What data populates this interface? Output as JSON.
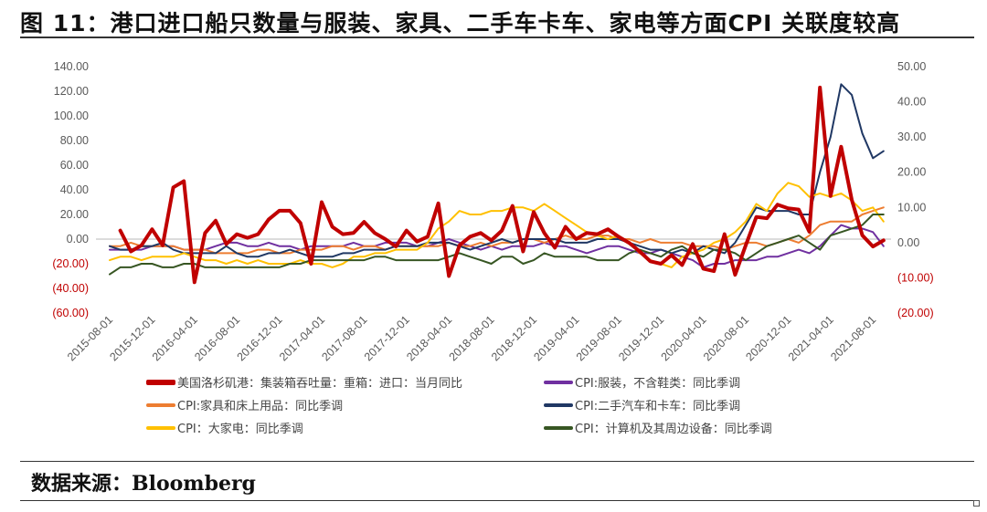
{
  "title": "图 11：港口进口船只数量与服装、家具、二手车卡车、家电等方面CPI 关联度较高",
  "source": "数据来源：Bloomberg",
  "chart_data": {
    "type": "line",
    "title": "图 11：港口进口船只数量与服装、家具、二手车卡车、家电等方面CPI 关联度较高",
    "x_start": "2015-08",
    "x_tick_labels": [
      "2015-08-01",
      "2015-12-01",
      "2016-04-01",
      "2016-08-01",
      "2016-12-01",
      "2017-04-01",
      "2017-08-01",
      "2017-12-01",
      "2018-04-01",
      "2018-08-01",
      "2018-12-01",
      "2019-04-01",
      "2019-08-01",
      "2019-12-01",
      "2020-04-01",
      "2020-08-01",
      "2020-12-01",
      "2021-04-01",
      "2021-08-01"
    ],
    "left_axis": {
      "ylim": [
        -60,
        140
      ],
      "tick_labels": [
        "140.00",
        "120.00",
        "100.00",
        "80.00",
        "60.00",
        "40.00",
        "20.00",
        "0.00",
        "(20.00)",
        "(40.00)",
        "(60.00)"
      ]
    },
    "right_axis": {
      "ylim": [
        -20,
        50
      ],
      "tick_labels": [
        "50.00",
        "40.00",
        "30.00",
        "20.00",
        "10.00",
        "0.00",
        "(10.00)",
        "(20.00)"
      ]
    },
    "negative_label_color": "#c00000",
    "legend_placement": "bottom",
    "grid": false,
    "series": [
      {
        "name": "美国洛杉矶港：集装箱吞吐量：重箱：进口：当月同比",
        "axis": "left",
        "color": "#c00000",
        "width": 4,
        "values": [
          null,
          7,
          -10,
          -5,
          8,
          -5,
          42,
          47,
          -35,
          5,
          15,
          -4,
          4,
          1,
          4,
          16,
          23,
          23,
          13,
          -20,
          30,
          10,
          4,
          5,
          14,
          5,
          0,
          -6,
          7,
          -2,
          2,
          29,
          -30,
          -5,
          2,
          5,
          -1,
          7,
          27,
          -10,
          22,
          5,
          -7,
          10,
          0,
          5,
          4,
          8,
          2,
          -3,
          -10,
          -18,
          -20,
          -13,
          -21,
          -4,
          -24,
          -26,
          4,
          -29,
          -5,
          18,
          17,
          28,
          25,
          24,
          6,
          123,
          35,
          75,
          32,
          3,
          -6,
          -1
        ]
      },
      {
        "name": "CPI:服装，不含鞋类：同比季调",
        "axis": "right",
        "color": "#7030a0",
        "width": 2,
        "values": [
          -2,
          -2,
          -2,
          -2,
          -1,
          -1,
          -1,
          -2,
          -2,
          -2,
          -1,
          0,
          0,
          -1,
          -1,
          0,
          -1,
          -1,
          -2,
          -1,
          -1,
          -1,
          -1,
          0,
          -1,
          -1,
          0,
          0,
          0,
          -1,
          -1,
          0,
          1,
          0,
          -1,
          -2,
          -1,
          -2,
          -1,
          -1,
          -1,
          0,
          -1,
          -1,
          -2,
          -3,
          -2,
          -1,
          -1,
          -2,
          -3,
          -3,
          -2,
          -3,
          -4,
          -5,
          -7,
          -6,
          -6,
          -5,
          -5,
          -5,
          -4,
          -4,
          -3,
          -2,
          -3,
          -1,
          2,
          5,
          4,
          4,
          3,
          -1
        ]
      },
      {
        "name": "CPI:家具和床上用品：同比季调",
        "axis": "right",
        "color": "#ed7d31",
        "width": 2,
        "values": [
          -1,
          -1,
          0,
          -1,
          -1,
          -1,
          -1,
          -2,
          -2,
          -2,
          -3,
          -3,
          -3,
          -3,
          -2,
          -2,
          -3,
          -3,
          -2,
          -2,
          -2,
          -1,
          -1,
          -2,
          -1,
          -1,
          -2,
          -1,
          -1,
          -1,
          -1,
          -1,
          0,
          -1,
          -1,
          0,
          -1,
          0,
          0,
          1,
          1,
          0,
          1,
          2,
          1,
          1,
          2,
          2,
          1,
          1,
          0,
          1,
          0,
          0,
          0,
          -1,
          -1,
          -1,
          -2,
          -1,
          0,
          0,
          -1,
          0,
          1,
          0,
          2,
          5,
          6,
          6,
          6,
          8,
          9,
          10
        ]
      },
      {
        "name": "CPI:二手汽车和卡车：同比季调",
        "axis": "right",
        "color": "#203864",
        "width": 2,
        "values": [
          -1,
          -2,
          -2,
          -1,
          -1,
          0,
          -2,
          -3,
          -3,
          -3,
          -3,
          -1,
          -3,
          -4,
          -4,
          -3,
          -3,
          -2,
          -3,
          -4,
          -4,
          -4,
          -3,
          -3,
          -2,
          -2,
          -2,
          -1,
          -1,
          -1,
          0,
          0,
          0,
          -1,
          -2,
          -1,
          0,
          1,
          0,
          1,
          1,
          1,
          1,
          0,
          0,
          0,
          1,
          1,
          1,
          0,
          -1,
          -2,
          -2,
          -3,
          -2,
          -3,
          -1,
          -2,
          -3,
          0,
          5,
          10,
          9,
          9,
          9,
          8,
          8,
          20,
          30,
          45,
          42,
          31,
          24,
          26
        ]
      },
      {
        "name": "CPI：大家电：同比季调",
        "axis": "right",
        "color": "#ffc000",
        "width": 2,
        "values": [
          -5,
          -4,
          -4,
          -5,
          -4,
          -4,
          -4,
          -3,
          -4,
          -5,
          -5,
          -6,
          -5,
          -6,
          -5,
          -6,
          -6,
          -6,
          -5,
          -6,
          -6,
          -7,
          -6,
          -4,
          -4,
          -3,
          -3,
          -2,
          -2,
          -2,
          0,
          4,
          6,
          9,
          8,
          8,
          9,
          9,
          10,
          10,
          9,
          11,
          9,
          7,
          5,
          3,
          2,
          1,
          2,
          0,
          -3,
          -5,
          -6,
          -7,
          -4,
          -3,
          -2,
          0,
          1,
          3,
          6,
          11,
          9,
          14,
          17,
          16,
          13,
          14,
          13,
          14,
          12,
          9,
          10,
          6
        ]
      },
      {
        "name": "CPI：计算机及其周边设备：同比季调",
        "axis": "right",
        "color": "#375623",
        "width": 2,
        "values": [
          -9,
          -7,
          -7,
          -6,
          -6,
          -7,
          -7,
          -6,
          -6,
          -7,
          -7,
          -7,
          -7,
          -7,
          -7,
          -7,
          -7,
          -6,
          -6,
          -5,
          -5,
          -5,
          -5,
          -5,
          -5,
          -4,
          -4,
          -5,
          -5,
          -5,
          -5,
          -5,
          -4,
          -3,
          -4,
          -5,
          -6,
          -4,
          -4,
          -6,
          -5,
          -3,
          -4,
          -4,
          -4,
          -4,
          -5,
          -5,
          -5,
          -3,
          -2,
          -3,
          -4,
          -2,
          -1,
          -3,
          -4,
          -2,
          -2,
          -3,
          -5,
          -3,
          -1,
          0,
          1,
          2,
          0,
          -2,
          2,
          3,
          4,
          5,
          8,
          8
        ]
      }
    ]
  }
}
